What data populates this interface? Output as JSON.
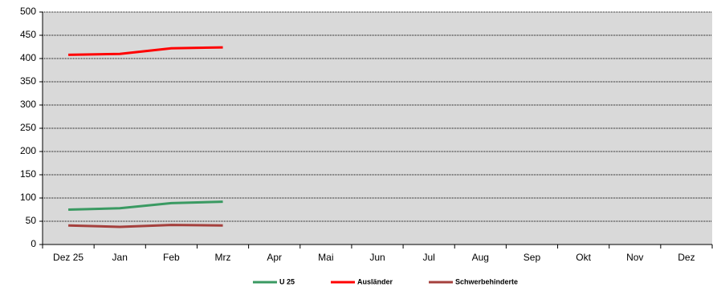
{
  "chart_data": {
    "type": "line",
    "categories": [
      "Dez 25",
      "Jan",
      "Feb",
      "Mrz",
      "Apr",
      "Mai",
      "Jun",
      "Jul",
      "Aug",
      "Sep",
      "Okt",
      "Nov",
      "Dez"
    ],
    "series": [
      {
        "name": "U 25",
        "color": "#3a9a62",
        "values": [
          75,
          78,
          89,
          92,
          null,
          null,
          null,
          null,
          null,
          null,
          null,
          null,
          null
        ]
      },
      {
        "name": "Ausländer",
        "color": "#ff0000",
        "values": [
          408,
          410,
          422,
          424,
          null,
          null,
          null,
          null,
          null,
          null,
          null,
          null,
          null
        ]
      },
      {
        "name": "Schwerbehinderte",
        "color": "#a5403d",
        "values": [
          41,
          38,
          42,
          41,
          null,
          null,
          null,
          null,
          null,
          null,
          null,
          null,
          null
        ]
      }
    ],
    "ylim": [
      0,
      500
    ],
    "yticks": [
      0,
      50,
      100,
      150,
      200,
      250,
      300,
      350,
      400,
      450,
      500
    ],
    "grid": true,
    "legend": "bottom"
  }
}
